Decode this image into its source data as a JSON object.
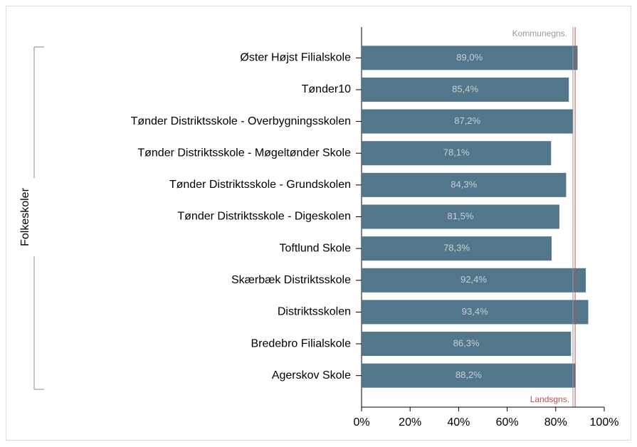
{
  "chart_data": {
    "type": "hbar",
    "group_label": "Folkeskoler",
    "categories": [
      "Øster Højst Filialskole",
      "Tønder10",
      "Tønder Distriktsskole - Overbygningsskolen",
      "Tønder Distriktsskole - Møgeltønder Skole",
      "Tønder Distriktsskole - Grundskolen",
      "Tønder Distriktsskole - Digeskolen",
      "Toftlund Skole",
      "Skærbæk Distriktsskole",
      "Distriktsskolen",
      "Bredebro Filialskole",
      "Agerskov Skole"
    ],
    "values": [
      89.0,
      85.4,
      87.2,
      78.1,
      84.3,
      81.5,
      78.3,
      92.4,
      93.4,
      86.3,
      88.2
    ],
    "value_labels": [
      "89,0%",
      "85,4%",
      "87,2%",
      "78,1%",
      "84,3%",
      "81,5%",
      "78,3%",
      "92,4%",
      "93,4%",
      "86,3%",
      "88,2%"
    ],
    "color": "#52778a",
    "xlim": [
      0,
      100
    ],
    "xticks": [
      {
        "value": 0,
        "label": "0%"
      },
      {
        "value": 20,
        "label": "20%"
      },
      {
        "value": 40,
        "label": "40%"
      },
      {
        "value": 60,
        "label": "60%"
      },
      {
        "value": 80,
        "label": "80%"
      },
      {
        "value": 100,
        "label": "100%"
      }
    ],
    "reference_lines": [
      {
        "name": "Kommunegns.",
        "value": 87.1,
        "color": "#999999"
      },
      {
        "name": "Landsgns.",
        "value": 88.0,
        "color": "#c0504d"
      }
    ]
  }
}
